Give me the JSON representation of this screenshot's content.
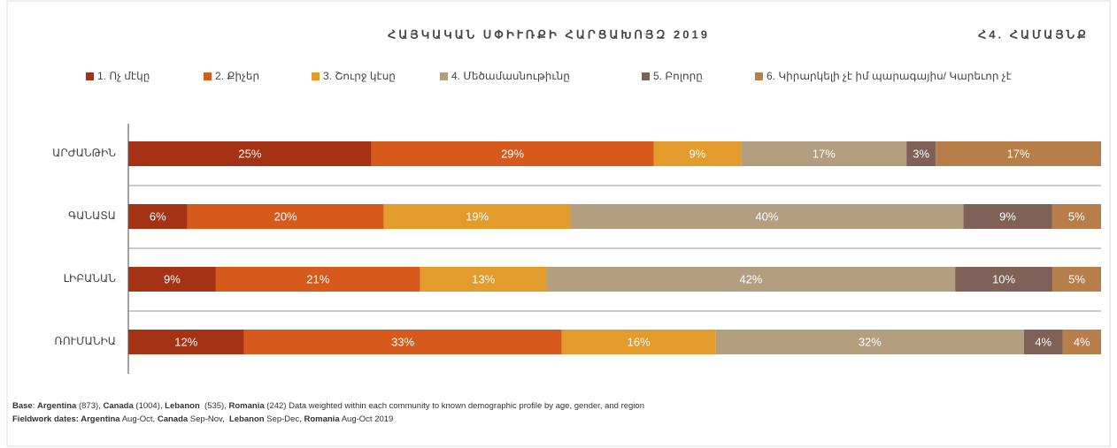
{
  "chart_data": {
    "type": "stacked-bar-100",
    "title": "ՀԱՅԿԱԿԱՆ ՍՓԻՒՌՔԻ ՀԱՐՑԱԽՈՅԶ 2019",
    "subtitle": "Հ4. ՀԱՄԱՅՆՔ",
    "categories": [
      "ԱՐԺԱՆԹԻՆ",
      "ԳԱՆԱՏԱ",
      "ԼԻԲԱՆԱՆ",
      "ՌՈՒՄԱՆԻԱ"
    ],
    "series": [
      {
        "name": "1. Ոչ մէկը",
        "color": "#a53215",
        "values": [
          25,
          6,
          9,
          12
        ],
        "value_labels": [
          "25%",
          "6%",
          "9%",
          "12%"
        ]
      },
      {
        "name": "2. Քիչեր",
        "color": "#d65a1b",
        "values": [
          29,
          20,
          21,
          33
        ],
        "value_labels": [
          "29%",
          "20%",
          "21%",
          "33%"
        ]
      },
      {
        "name": "3. Շուրջ կէսը",
        "color": "#e39b2b",
        "values": [
          9,
          19,
          13,
          16
        ],
        "value_labels": [
          "9%",
          "19%",
          "13%",
          "16%"
        ]
      },
      {
        "name": "4. Մեծամասնութիւնը",
        "color": "#b49e80",
        "values": [
          17,
          40,
          42,
          32
        ],
        "value_labels": [
          "17%",
          "40%",
          "42%",
          "32%"
        ]
      },
      {
        "name": "5. Բոլորը",
        "color": "#7f6157",
        "values": [
          3,
          9,
          10,
          4
        ],
        "value_labels": [
          "3%",
          "9%",
          "10%",
          "4%"
        ]
      },
      {
        "name": "6. Կիրարկելի չէ իմ պարագայիս/ Կարեւոր չէ",
        "color": "#b87e49",
        "values": [
          17,
          5,
          5,
          4
        ],
        "value_labels": [
          "17%",
          "5%",
          "5%",
          "4%"
        ]
      }
    ],
    "footnotes": [
      [
        {
          "text": "Base",
          "bold": true
        },
        {
          "text": ": ",
          "bold": false
        },
        {
          "text": "Argentina",
          "bold": true
        },
        {
          "text": " (873), ",
          "bold": false
        },
        {
          "text": "Canada",
          "bold": true
        },
        {
          "text": " (1004), ",
          "bold": false
        },
        {
          "text": "Lebanon",
          "bold": true
        },
        {
          "text": "  (535), ",
          "bold": false
        },
        {
          "text": "Romania",
          "bold": true
        },
        {
          "text": " (242) Data weighted within each community to known demographic profile by age, gender, and region",
          "bold": false
        }
      ],
      [
        {
          "text": "Fieldwork dates: Argentina",
          "bold": true
        },
        {
          "text": " Aug-Oct, ",
          "bold": false
        },
        {
          "text": "Canada",
          "bold": true
        },
        {
          "text": " Sep-Nov,  ",
          "bold": false
        },
        {
          "text": "Lebanon",
          "bold": true
        },
        {
          "text": " Sep-Dec, ",
          "bold": false
        },
        {
          "text": "Romania",
          "bold": true
        },
        {
          "text": " Aug-Oct 2019",
          "bold": false
        }
      ]
    ]
  }
}
